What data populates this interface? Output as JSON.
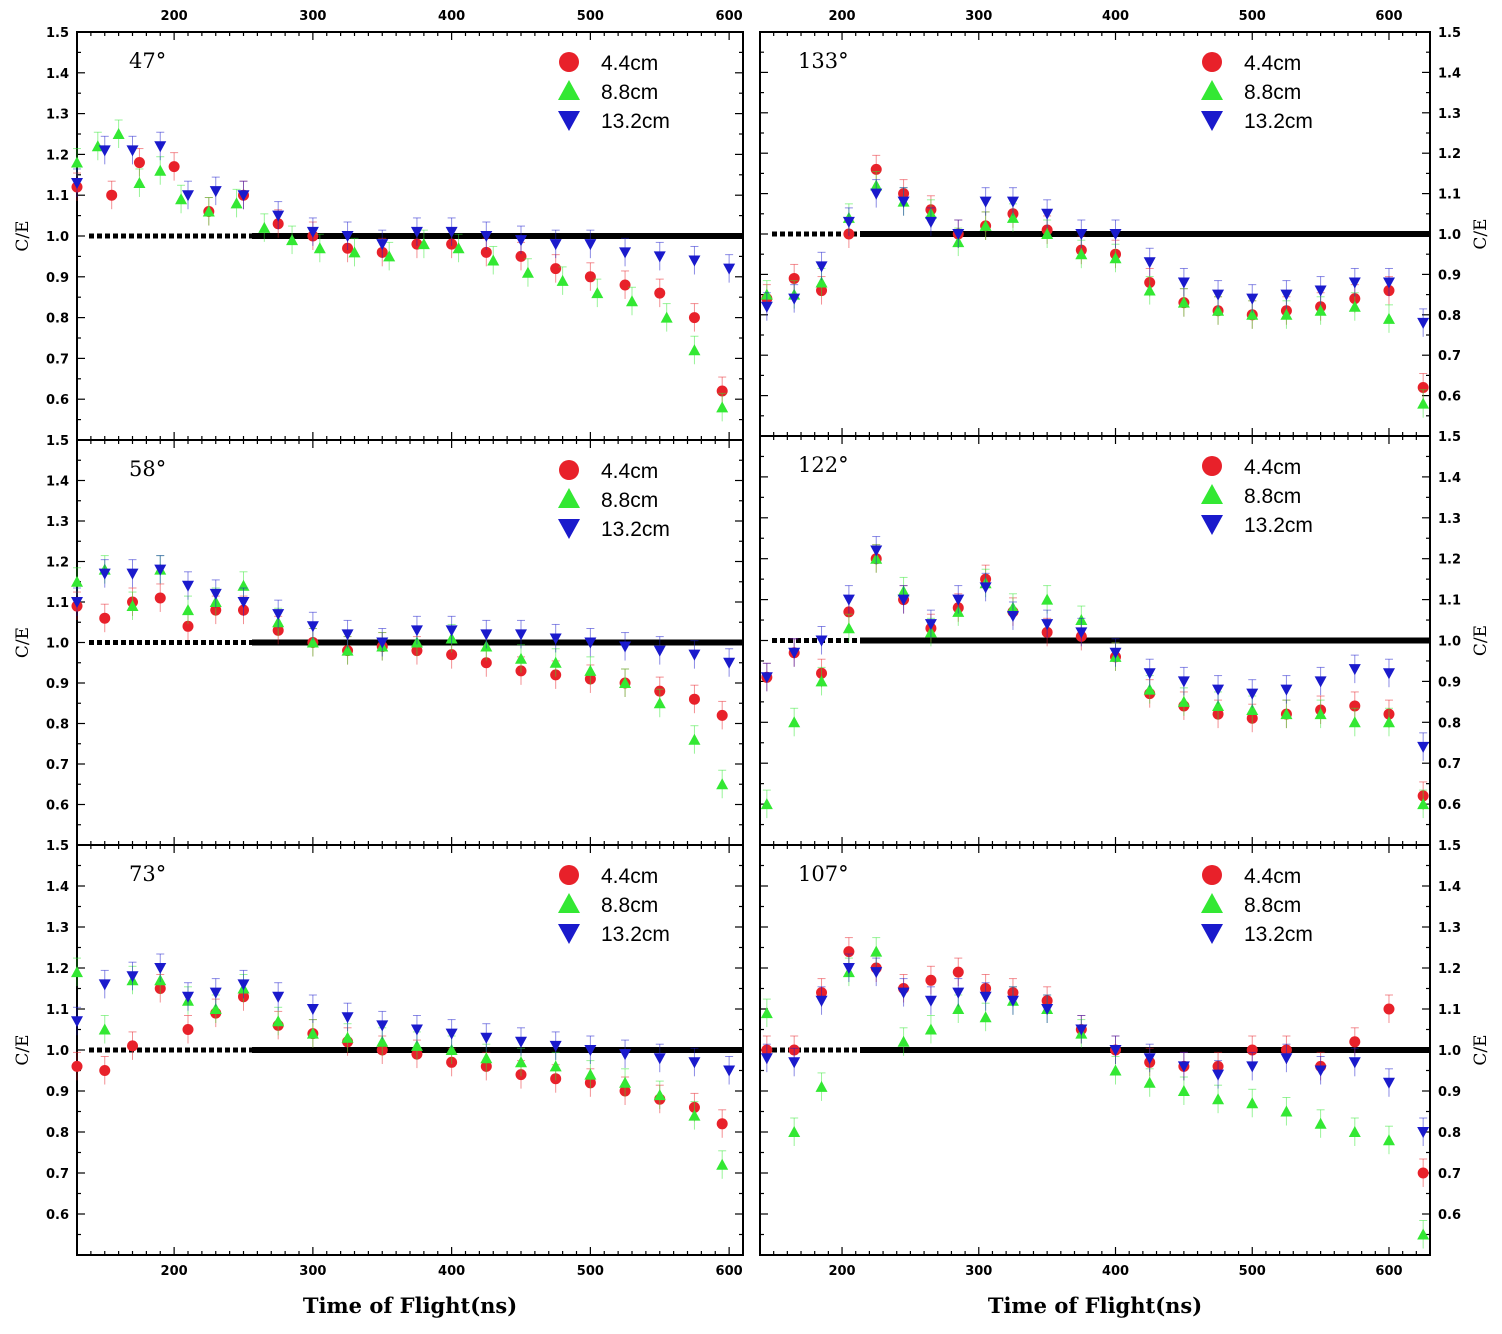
{
  "chart_data": {
    "type": "scatter",
    "title": "",
    "xlabel": "Time of Flight(ns)",
    "ylabel": "C/E",
    "xticks": [
      200,
      300,
      400,
      500,
      600
    ],
    "yticks": [
      0.6,
      0.7,
      0.8,
      0.9,
      1.0,
      1.1,
      1.2,
      1.3,
      1.4,
      1.5
    ],
    "ylim": [
      0.5,
      1.5
    ],
    "reference_line": 1.0,
    "legend": [
      "4.4cm",
      "8.8cm",
      "13.2cm"
    ],
    "series_colors": {
      "4.4cm": "#e8212a",
      "8.8cm": "#33e833",
      "13.2cm": "#1a1acc"
    },
    "series_markers": {
      "4.4cm": "circle",
      "8.8cm": "triangle-up",
      "13.2cm": "triangle-down"
    },
    "panels": [
      {
        "angle": "47°",
        "xlim": [
          130,
          610
        ],
        "series": [
          {
            "name": "4.4cm",
            "x": [
              130,
              155,
              175,
              200,
              225,
              250,
              275,
              300,
              325,
              350,
              375,
              400,
              425,
              450,
              475,
              500,
              525,
              550,
              575,
              595
            ],
            "y": [
              1.12,
              1.1,
              1.18,
              1.17,
              1.06,
              1.1,
              1.03,
              1.0,
              0.97,
              0.96,
              0.98,
              0.98,
              0.96,
              0.95,
              0.92,
              0.9,
              0.88,
              0.86,
              0.8,
              0.62
            ]
          },
          {
            "name": "8.8cm",
            "x": [
              130,
              145,
              160,
              175,
              190,
              205,
              225,
              245,
              265,
              285,
              305,
              330,
              355,
              380,
              405,
              430,
              455,
              480,
              505,
              530,
              555,
              575,
              595
            ],
            "y": [
              1.18,
              1.22,
              1.25,
              1.13,
              1.16,
              1.09,
              1.06,
              1.08,
              1.02,
              0.99,
              0.97,
              0.96,
              0.95,
              0.98,
              0.97,
              0.94,
              0.91,
              0.89,
              0.86,
              0.84,
              0.8,
              0.72,
              0.58
            ]
          },
          {
            "name": "13.2cm",
            "x": [
              130,
              150,
              170,
              190,
              210,
              230,
              250,
              275,
              300,
              325,
              350,
              375,
              400,
              425,
              450,
              475,
              500,
              525,
              550,
              575,
              600
            ],
            "y": [
              1.13,
              1.21,
              1.21,
              1.22,
              1.1,
              1.11,
              1.1,
              1.05,
              1.01,
              1.0,
              0.98,
              1.01,
              1.01,
              1.0,
              0.99,
              0.98,
              0.98,
              0.96,
              0.95,
              0.94,
              0.92
            ]
          }
        ]
      },
      {
        "angle": "133°",
        "xlim": [
          140,
          630
        ],
        "series": [
          {
            "name": "4.4cm",
            "x": [
              145,
              165,
              185,
              205,
              225,
              245,
              265,
              285,
              305,
              325,
              350,
              375,
              400,
              425,
              450,
              475,
              500,
              525,
              550,
              575,
              600,
              625
            ],
            "y": [
              0.84,
              0.89,
              0.86,
              1.0,
              1.16,
              1.1,
              1.06,
              1.0,
              1.02,
              1.05,
              1.01,
              0.96,
              0.95,
              0.88,
              0.83,
              0.81,
              0.8,
              0.81,
              0.82,
              0.84,
              0.86,
              0.62
            ]
          },
          {
            "name": "8.8cm",
            "x": [
              145,
              165,
              185,
              205,
              225,
              245,
              265,
              285,
              305,
              325,
              350,
              375,
              400,
              425,
              450,
              475,
              500,
              525,
              550,
              575,
              600,
              625
            ],
            "y": [
              0.85,
              0.85,
              0.88,
              1.04,
              1.12,
              1.08,
              1.05,
              0.98,
              1.02,
              1.04,
              1.0,
              0.95,
              0.94,
              0.86,
              0.83,
              0.81,
              0.8,
              0.8,
              0.81,
              0.82,
              0.79,
              0.58
            ]
          },
          {
            "name": "13.2cm",
            "x": [
              145,
              165,
              185,
              205,
              225,
              245,
              265,
              285,
              305,
              325,
              350,
              375,
              400,
              425,
              450,
              475,
              500,
              525,
              550,
              575,
              600,
              625
            ],
            "y": [
              0.82,
              0.84,
              0.92,
              1.03,
              1.1,
              1.08,
              1.03,
              1.0,
              1.08,
              1.08,
              1.05,
              1.0,
              1.0,
              0.93,
              0.88,
              0.85,
              0.84,
              0.85,
              0.86,
              0.88,
              0.88,
              0.78
            ]
          }
        ]
      },
      {
        "angle": "58°",
        "xlim": [
          130,
          610
        ],
        "series": [
          {
            "name": "4.4cm",
            "x": [
              130,
              150,
              170,
              190,
              210,
              230,
              250,
              275,
              300,
              325,
              350,
              375,
              400,
              425,
              450,
              475,
              500,
              525,
              550,
              575,
              595
            ],
            "y": [
              1.09,
              1.06,
              1.1,
              1.11,
              1.04,
              1.08,
              1.08,
              1.03,
              1.0,
              0.98,
              0.99,
              0.98,
              0.97,
              0.95,
              0.93,
              0.92,
              0.91,
              0.9,
              0.88,
              0.86,
              0.82
            ]
          },
          {
            "name": "8.8cm",
            "x": [
              130,
              150,
              170,
              190,
              210,
              230,
              250,
              275,
              300,
              325,
              350,
              375,
              400,
              425,
              450,
              475,
              500,
              525,
              550,
              575,
              595
            ],
            "y": [
              1.15,
              1.18,
              1.09,
              1.18,
              1.08,
              1.1,
              1.14,
              1.05,
              1.0,
              0.98,
              0.99,
              1.0,
              1.01,
              0.99,
              0.96,
              0.95,
              0.93,
              0.9,
              0.85,
              0.76,
              0.65
            ]
          },
          {
            "name": "13.2cm",
            "x": [
              130,
              150,
              170,
              190,
              210,
              230,
              250,
              275,
              300,
              325,
              350,
              375,
              400,
              425,
              450,
              475,
              500,
              525,
              550,
              575,
              600
            ],
            "y": [
              1.1,
              1.17,
              1.17,
              1.18,
              1.14,
              1.12,
              1.1,
              1.07,
              1.04,
              1.02,
              1.0,
              1.03,
              1.03,
              1.02,
              1.02,
              1.01,
              1.0,
              0.99,
              0.98,
              0.97,
              0.95
            ]
          }
        ]
      },
      {
        "angle": "122°",
        "xlim": [
          140,
          630
        ],
        "series": [
          {
            "name": "4.4cm",
            "x": [
              145,
              165,
              185,
              205,
              225,
              245,
              265,
              285,
              305,
              325,
              350,
              375,
              400,
              425,
              450,
              475,
              500,
              525,
              550,
              575,
              600,
              625
            ],
            "y": [
              0.91,
              0.97,
              0.92,
              1.07,
              1.2,
              1.1,
              1.03,
              1.08,
              1.15,
              1.07,
              1.02,
              1.01,
              0.96,
              0.87,
              0.84,
              0.82,
              0.81,
              0.82,
              0.83,
              0.84,
              0.82,
              0.62
            ]
          },
          {
            "name": "8.8cm",
            "x": [
              145,
              165,
              185,
              205,
              225,
              245,
              265,
              285,
              305,
              325,
              350,
              375,
              400,
              425,
              450,
              475,
              500,
              525,
              550,
              575,
              600,
              625
            ],
            "y": [
              0.6,
              0.8,
              0.9,
              1.03,
              1.2,
              1.12,
              1.02,
              1.07,
              1.14,
              1.08,
              1.1,
              1.05,
              0.96,
              0.88,
              0.85,
              0.84,
              0.83,
              0.82,
              0.82,
              0.8,
              0.8,
              0.6
            ]
          },
          {
            "name": "13.2cm",
            "x": [
              145,
              165,
              185,
              205,
              225,
              245,
              265,
              285,
              305,
              325,
              350,
              375,
              400,
              425,
              450,
              475,
              500,
              525,
              550,
              575,
              600,
              625
            ],
            "y": [
              0.91,
              0.97,
              1.0,
              1.1,
              1.22,
              1.1,
              1.04,
              1.1,
              1.13,
              1.06,
              1.04,
              1.02,
              0.97,
              0.92,
              0.9,
              0.88,
              0.87,
              0.88,
              0.9,
              0.93,
              0.92,
              0.74
            ]
          }
        ]
      },
      {
        "angle": "73°",
        "xlim": [
          130,
          610
        ],
        "series": [
          {
            "name": "4.4cm",
            "x": [
              130,
              150,
              170,
              190,
              210,
              230,
              250,
              275,
              300,
              325,
              350,
              375,
              400,
              425,
              450,
              475,
              500,
              525,
              550,
              575,
              595
            ],
            "y": [
              0.96,
              0.95,
              1.01,
              1.15,
              1.05,
              1.09,
              1.13,
              1.06,
              1.04,
              1.02,
              1.0,
              0.99,
              0.97,
              0.96,
              0.94,
              0.93,
              0.92,
              0.9,
              0.88,
              0.86,
              0.82
            ]
          },
          {
            "name": "8.8cm",
            "x": [
              130,
              150,
              170,
              190,
              210,
              230,
              250,
              275,
              300,
              325,
              350,
              375,
              400,
              425,
              450,
              475,
              500,
              525,
              550,
              575,
              595
            ],
            "y": [
              1.19,
              1.05,
              1.17,
              1.17,
              1.12,
              1.1,
              1.15,
              1.07,
              1.04,
              1.03,
              1.02,
              1.01,
              1.0,
              0.98,
              0.97,
              0.96,
              0.94,
              0.92,
              0.89,
              0.84,
              0.72
            ]
          },
          {
            "name": "13.2cm",
            "x": [
              130,
              150,
              170,
              190,
              210,
              230,
              250,
              275,
              300,
              325,
              350,
              375,
              400,
              425,
              450,
              475,
              500,
              525,
              550,
              575,
              600
            ],
            "y": [
              1.07,
              1.16,
              1.18,
              1.2,
              1.13,
              1.14,
              1.16,
              1.13,
              1.1,
              1.08,
              1.06,
              1.05,
              1.04,
              1.03,
              1.02,
              1.01,
              1.0,
              0.99,
              0.98,
              0.97,
              0.95
            ]
          }
        ]
      },
      {
        "angle": "107°",
        "xlim": [
          140,
          630
        ],
        "series": [
          {
            "name": "4.4cm",
            "x": [
              145,
              165,
              185,
              205,
              225,
              245,
              265,
              285,
              305,
              325,
              350,
              375,
              400,
              425,
              450,
              475,
              500,
              525,
              550,
              575,
              600,
              625
            ],
            "y": [
              1.0,
              1.0,
              1.14,
              1.24,
              1.2,
              1.15,
              1.17,
              1.19,
              1.15,
              1.14,
              1.12,
              1.05,
              1.0,
              0.97,
              0.96,
              0.96,
              1.0,
              1.0,
              0.96,
              1.02,
              1.1,
              0.7
            ]
          },
          {
            "name": "8.8cm",
            "x": [
              145,
              165,
              185,
              205,
              225,
              245,
              265,
              285,
              305,
              325,
              350,
              375,
              400,
              425,
              450,
              475,
              500,
              525,
              550,
              575,
              600,
              625
            ],
            "y": [
              1.09,
              0.8,
              0.91,
              1.19,
              1.24,
              1.02,
              1.05,
              1.1,
              1.08,
              1.12,
              1.1,
              1.04,
              0.95,
              0.92,
              0.9,
              0.88,
              0.87,
              0.85,
              0.82,
              0.8,
              0.78,
              0.55
            ]
          },
          {
            "name": "13.2cm",
            "x": [
              145,
              165,
              185,
              205,
              225,
              245,
              265,
              285,
              305,
              325,
              350,
              375,
              400,
              425,
              450,
              475,
              500,
              525,
              550,
              575,
              600,
              625
            ],
            "y": [
              0.98,
              0.97,
              1.12,
              1.2,
              1.19,
              1.14,
              1.12,
              1.14,
              1.13,
              1.12,
              1.1,
              1.05,
              1.0,
              0.98,
              0.96,
              0.94,
              0.96,
              0.98,
              0.95,
              0.97,
              0.92,
              0.8
            ]
          }
        ]
      }
    ]
  }
}
